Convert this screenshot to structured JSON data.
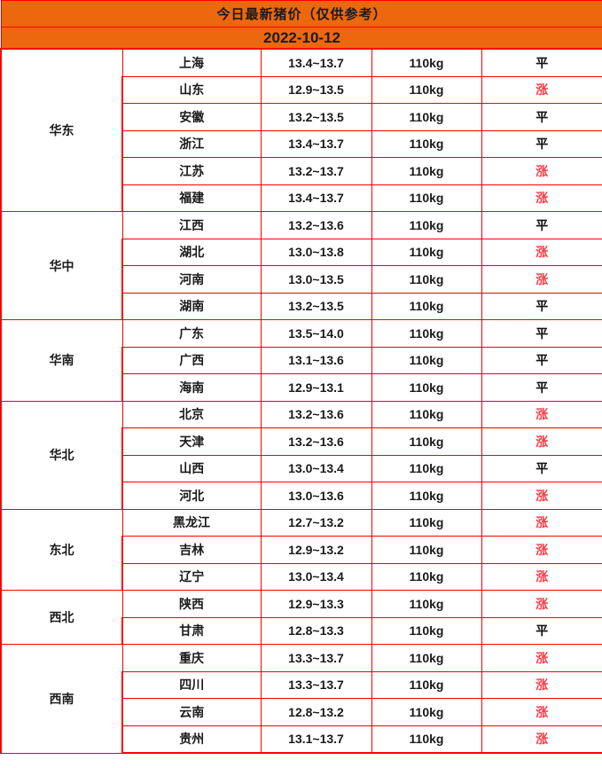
{
  "header": {
    "title": "今日最新猪价（仅供参考）",
    "date": "2022-10-12"
  },
  "colors": {
    "header_orange": "#ED670F",
    "grid_red": "#FE0000",
    "rise_red": "#FB3B46",
    "flat_black": "#111111"
  },
  "regions": [
    {
      "name": "华东",
      "rows": [
        {
          "province": "上海",
          "price": "13.4~13.7",
          "weight": "110kg",
          "status": "平",
          "trend": "flat"
        },
        {
          "province": "山东",
          "price": "12.9~13.5",
          "weight": "110kg",
          "status": "涨",
          "trend": "rise"
        },
        {
          "province": "安徽",
          "price": "13.2~13.5",
          "weight": "110kg",
          "status": "平",
          "trend": "flat"
        },
        {
          "province": "浙江",
          "price": "13.4~13.7",
          "weight": "110kg",
          "status": "平",
          "trend": "flat"
        },
        {
          "province": "江苏",
          "price": "13.2~13.7",
          "weight": "110kg",
          "status": "涨",
          "trend": "rise"
        },
        {
          "province": "福建",
          "price": "13.4~13.7",
          "weight": "110kg",
          "status": "涨",
          "trend": "rise"
        }
      ]
    },
    {
      "name": "华中",
      "rows": [
        {
          "province": "江西",
          "price": "13.2~13.6",
          "weight": "110kg",
          "status": "平",
          "trend": "flat"
        },
        {
          "province": "湖北",
          "price": "13.0~13.8",
          "weight": "110kg",
          "status": "涨",
          "trend": "rise"
        },
        {
          "province": "河南",
          "price": "13.0~13.5",
          "weight": "110kg",
          "status": "涨",
          "trend": "rise"
        },
        {
          "province": "湖南",
          "price": "13.2~13.5",
          "weight": "110kg",
          "status": "平",
          "trend": "flat"
        }
      ]
    },
    {
      "name": "华南",
      "rows": [
        {
          "province": "广东",
          "price": "13.5~14.0",
          "weight": "110kg",
          "status": "平",
          "trend": "flat"
        },
        {
          "province": "广西",
          "price": "13.1~13.6",
          "weight": "110kg",
          "status": "平",
          "trend": "flat"
        },
        {
          "province": "海南",
          "price": "12.9~13.1",
          "weight": "110kg",
          "status": "平",
          "trend": "flat"
        }
      ]
    },
    {
      "name": "华北",
      "rows": [
        {
          "province": "北京",
          "price": "13.2~13.6",
          "weight": "110kg",
          "status": "涨",
          "trend": "rise"
        },
        {
          "province": "天津",
          "price": "13.2~13.6",
          "weight": "110kg",
          "status": "涨",
          "trend": "rise"
        },
        {
          "province": "山西",
          "price": "13.0~13.4",
          "weight": "110kg",
          "status": "平",
          "trend": "flat"
        },
        {
          "province": "河北",
          "price": "13.0~13.6",
          "weight": "110kg",
          "status": "涨",
          "trend": "rise"
        }
      ]
    },
    {
      "name": "东北",
      "rows": [
        {
          "province": "黑龙江",
          "price": "12.7~13.2",
          "weight": "110kg",
          "status": "涨",
          "trend": "rise"
        },
        {
          "province": "吉林",
          "price": "12.9~13.2",
          "weight": "110kg",
          "status": "涨",
          "trend": "rise"
        },
        {
          "province": "辽宁",
          "price": "13.0~13.4",
          "weight": "110kg",
          "status": "涨",
          "trend": "rise"
        }
      ]
    },
    {
      "name": "西北",
      "rows": [
        {
          "province": "陕西",
          "price": "12.9~13.3",
          "weight": "110kg",
          "status": "涨",
          "trend": "rise"
        },
        {
          "province": "甘肃",
          "price": "12.8~13.3",
          "weight": "110kg",
          "status": "平",
          "trend": "flat"
        }
      ]
    },
    {
      "name": "西南",
      "rows": [
        {
          "province": "重庆",
          "price": "13.3~13.7",
          "weight": "110kg",
          "status": "涨",
          "trend": "rise"
        },
        {
          "province": "四川",
          "price": "13.3~13.7",
          "weight": "110kg",
          "status": "涨",
          "trend": "rise"
        },
        {
          "province": "云南",
          "price": "12.8~13.2",
          "weight": "110kg",
          "status": "涨",
          "trend": "rise"
        },
        {
          "province": "贵州",
          "price": "13.1~13.7",
          "weight": "110kg",
          "status": "涨",
          "trend": "rise"
        }
      ]
    }
  ],
  "chart_data": {
    "type": "table",
    "title": "今日最新猪价（仅供参考）",
    "subtitle": "2022-10-12",
    "columns": [
      "region",
      "province",
      "price_range",
      "weight",
      "status"
    ],
    "rows": [
      [
        "华东",
        "上海",
        "13.4~13.7",
        "110kg",
        "平"
      ],
      [
        "华东",
        "山东",
        "12.9~13.5",
        "110kg",
        "涨"
      ],
      [
        "华东",
        "安徽",
        "13.2~13.5",
        "110kg",
        "平"
      ],
      [
        "华东",
        "浙江",
        "13.4~13.7",
        "110kg",
        "平"
      ],
      [
        "华东",
        "江苏",
        "13.2~13.7",
        "110kg",
        "涨"
      ],
      [
        "华东",
        "福建",
        "13.4~13.7",
        "110kg",
        "涨"
      ],
      [
        "华中",
        "江西",
        "13.2~13.6",
        "110kg",
        "平"
      ],
      [
        "华中",
        "湖北",
        "13.0~13.8",
        "110kg",
        "涨"
      ],
      [
        "华中",
        "河南",
        "13.0~13.5",
        "110kg",
        "涨"
      ],
      [
        "华中",
        "湖南",
        "13.2~13.5",
        "110kg",
        "平"
      ],
      [
        "华南",
        "广东",
        "13.5~14.0",
        "110kg",
        "平"
      ],
      [
        "华南",
        "广西",
        "13.1~13.6",
        "110kg",
        "平"
      ],
      [
        "华南",
        "海南",
        "12.9~13.1",
        "110kg",
        "平"
      ],
      [
        "华北",
        "北京",
        "13.2~13.6",
        "110kg",
        "涨"
      ],
      [
        "华北",
        "天津",
        "13.2~13.6",
        "110kg",
        "涨"
      ],
      [
        "华北",
        "山西",
        "13.0~13.4",
        "110kg",
        "平"
      ],
      [
        "华北",
        "河北",
        "13.0~13.6",
        "110kg",
        "涨"
      ],
      [
        "东北",
        "黑龙江",
        "12.7~13.2",
        "110kg",
        "涨"
      ],
      [
        "东北",
        "吉林",
        "12.9~13.2",
        "110kg",
        "涨"
      ],
      [
        "东北",
        "辽宁",
        "13.0~13.4",
        "110kg",
        "涨"
      ],
      [
        "西北",
        "陕西",
        "12.9~13.3",
        "110kg",
        "涨"
      ],
      [
        "西北",
        "甘肃",
        "12.8~13.3",
        "110kg",
        "平"
      ],
      [
        "西南",
        "重庆",
        "13.3~13.7",
        "110kg",
        "涨"
      ],
      [
        "西南",
        "四川",
        "13.3~13.7",
        "110kg",
        "涨"
      ],
      [
        "西南",
        "云南",
        "12.8~13.2",
        "110kg",
        "涨"
      ],
      [
        "西南",
        "贵州",
        "13.1~13.7",
        "110kg",
        "涨"
      ]
    ]
  }
}
